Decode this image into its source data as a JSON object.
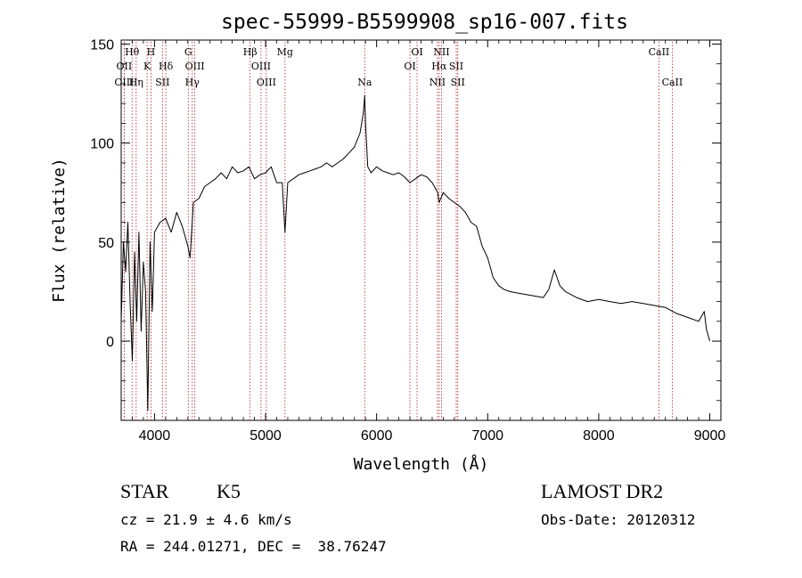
{
  "chart_data": {
    "type": "line",
    "title": "spec-55999-B5599908_sp16-007.fits",
    "xlabel": "Wavelength (Å)",
    "ylabel": "Flux (relative)",
    "xlim": [
      3700,
      9100
    ],
    "ylim": [
      -40,
      152
    ],
    "x_ticks": [
      4000,
      5000,
      6000,
      7000,
      8000,
      9000
    ],
    "y_ticks": [
      0,
      50,
      100,
      150
    ],
    "line_color": "#000000",
    "marker_color": "#b22222",
    "series": [
      {
        "x": [
          3700,
          3720,
          3740,
          3760,
          3780,
          3800,
          3820,
          3840,
          3860,
          3880,
          3900,
          3920,
          3940,
          3960,
          3980,
          4000,
          4050,
          4100,
          4150,
          4200,
          4250,
          4300,
          4320,
          4350,
          4400,
          4450,
          4500,
          4550,
          4600,
          4650,
          4700,
          4750,
          4800,
          4850,
          4900,
          4950,
          5000,
          5050,
          5100,
          5150,
          5175,
          5200,
          5250,
          5300,
          5350,
          5400,
          5450,
          5500,
          5550,
          5600,
          5650,
          5700,
          5750,
          5800,
          5850,
          5880,
          5893,
          5900,
          5920,
          5950,
          6000,
          6050,
          6100,
          6150,
          6200,
          6250,
          6300,
          6350,
          6400,
          6450,
          6500,
          6550,
          6563,
          6600,
          6650,
          6700,
          6750,
          6800,
          6850,
          6900,
          6950,
          7000,
          7050,
          7100,
          7150,
          7200,
          7300,
          7400,
          7500,
          7550,
          7600,
          7650,
          7700,
          7800,
          7900,
          8000,
          8100,
          8200,
          8300,
          8400,
          8500,
          8600,
          8700,
          8800,
          8900,
          8950,
          8970,
          9000
        ],
        "y": [
          10,
          50,
          35,
          60,
          20,
          -10,
          45,
          10,
          55,
          5,
          40,
          25,
          -35,
          50,
          15,
          55,
          60,
          62,
          55,
          65,
          58,
          48,
          42,
          70,
          72,
          78,
          80,
          82,
          85,
          82,
          88,
          85,
          86,
          88,
          82,
          84,
          85,
          88,
          80,
          80,
          55,
          80,
          82,
          84,
          85,
          86,
          87,
          88,
          90,
          88,
          90,
          92,
          95,
          98,
          105,
          115,
          124,
          110,
          88,
          85,
          88,
          86,
          85,
          84,
          85,
          83,
          80,
          82,
          84,
          83,
          80,
          75,
          70,
          75,
          72,
          70,
          68,
          65,
          60,
          58,
          48,
          42,
          32,
          28,
          26,
          25,
          24,
          23,
          22,
          26,
          36,
          28,
          25,
          22,
          20,
          21,
          20,
          19,
          20,
          19,
          18,
          17,
          14,
          12,
          10,
          15,
          6,
          0
        ]
      }
    ],
    "lines_row1": [
      {
        "label": "Hθ",
        "x": 3798
      },
      {
        "label": "H",
        "x": 3968
      },
      {
        "label": "G",
        "x": 4304
      },
      {
        "label": "Hβ",
        "x": 4861
      },
      {
        "label": "Mg",
        "x": 5175
      },
      {
        "label": "OI",
        "x": 6364
      },
      {
        "label": "NII",
        "x": 6584
      },
      {
        "label": "CaII",
        "x": 8542
      }
    ],
    "lines_row2": [
      {
        "label": "OII",
        "x": 3727
      },
      {
        "label": "K",
        "x": 3934
      },
      {
        "label": "Hδ",
        "x": 4102
      },
      {
        "label": "OIII",
        "x": 4363
      },
      {
        "label": "OIII",
        "x": 4959
      },
      {
        "label": "OI",
        "x": 6300
      },
      {
        "label": "Hα",
        "x": 6563
      },
      {
        "label": "SII",
        "x": 6717
      }
    ],
    "lines_row3": [
      {
        "label": "OIII",
        "x": 3727
      },
      {
        "label": "Hη",
        "x": 3835
      },
      {
        "label": "SII",
        "x": 4072
      },
      {
        "label": "Hγ",
        "x": 4340
      },
      {
        "label": "OIII",
        "x": 5007
      },
      {
        "label": "Na",
        "x": 5893
      },
      {
        "label": "NII",
        "x": 6548
      },
      {
        "label": "SII",
        "x": 6731
      },
      {
        "label": "CaII",
        "x": 8662
      }
    ]
  },
  "info": {
    "object_class": "STAR",
    "subclass": "K5",
    "survey": "LAMOST DR2",
    "redshift": "cz = 21.9 ± 4.6 km/s",
    "obs_date": "Obs-Date: 20120312",
    "coords": "RA = 244.01271, DEC =  38.76247"
  }
}
